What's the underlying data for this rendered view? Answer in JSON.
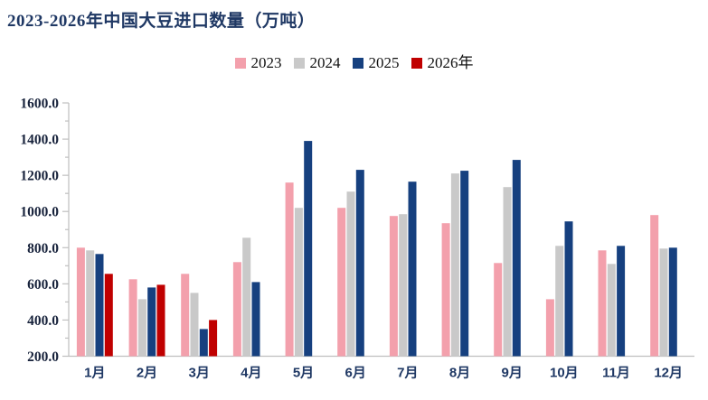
{
  "chart_data": {
    "type": "bar",
    "title": "2023-2026年中国大豆进口数量（万吨）",
    "unit": "万吨",
    "categories": [
      "1月",
      "2月",
      "3月",
      "4月",
      "5月",
      "6月",
      "7月",
      "8月",
      "9月",
      "10月",
      "11月",
      "12月"
    ],
    "series": [
      {
        "name": "2023",
        "color": "#F3A0AC",
        "values": [
          800,
          625,
          655,
          720,
          1160,
          1020,
          975,
          935,
          715,
          515,
          785,
          980
        ]
      },
      {
        "name": "2024",
        "color": "#C9C9C9",
        "values": [
          785,
          515,
          550,
          855,
          1020,
          1110,
          985,
          1210,
          1135,
          810,
          710,
          795
        ]
      },
      {
        "name": "2025",
        "color": "#16407F",
        "values": [
          765,
          580,
          350,
          610,
          1390,
          1230,
          1165,
          1225,
          1285,
          945,
          810,
          800
        ]
      },
      {
        "name": "2026年",
        "color": "#C00000",
        "values": [
          655,
          595,
          400,
          null,
          null,
          null,
          null,
          null,
          null,
          null,
          null,
          null
        ]
      }
    ],
    "ylim": [
      200,
      1600
    ],
    "ytick_step": 200,
    "ytick_minor_step": 100,
    "ytick_decimals": 1,
    "grid": false,
    "legend_position": "top-center",
    "axis_color": "#BFBFBF",
    "title_color": "#1F3864",
    "y_label_color": "#18233C",
    "x_label_color": "#1F3864"
  }
}
